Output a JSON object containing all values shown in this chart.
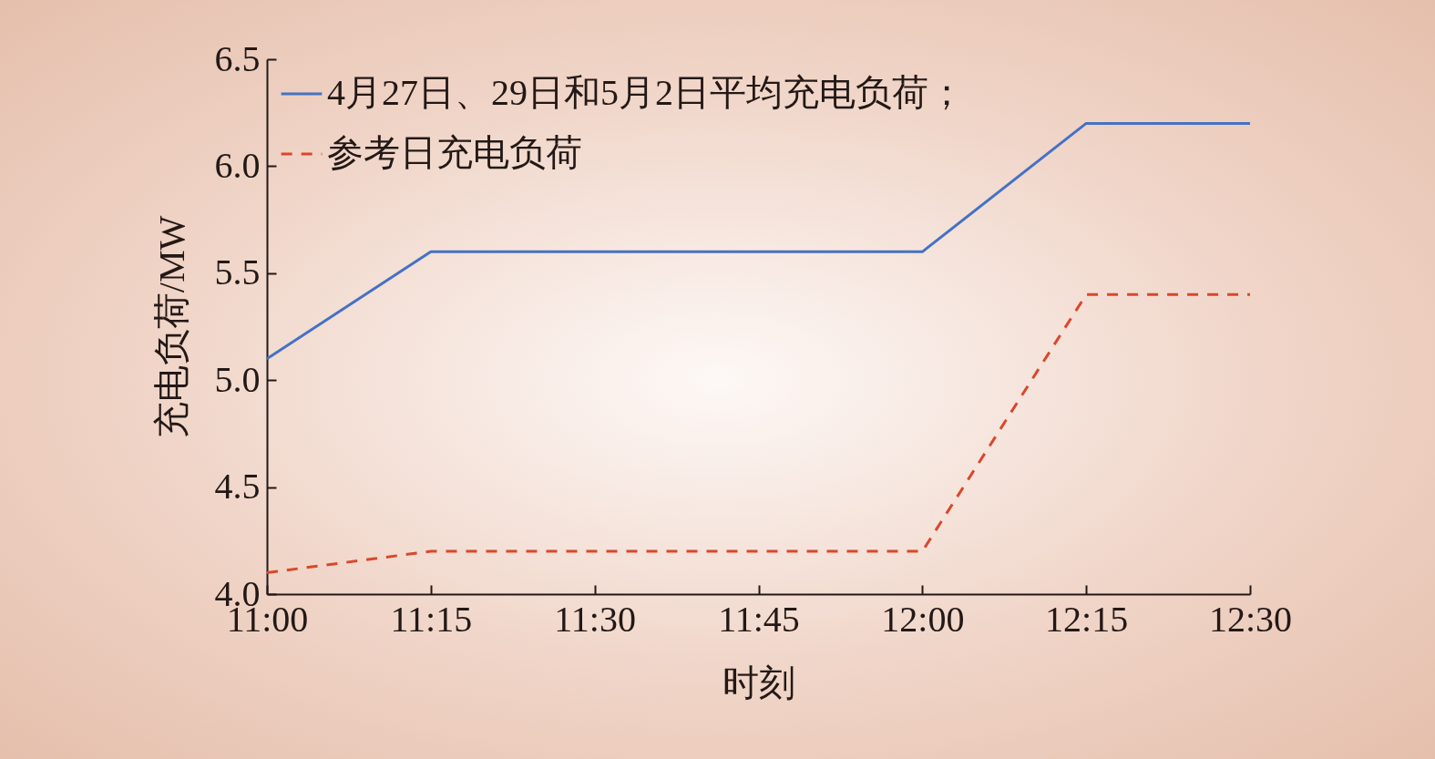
{
  "chart_data": {
    "type": "line",
    "xlabel": "时刻",
    "ylabel": "充电负荷/MW",
    "x": [
      11,
      11.25,
      11.5,
      11.75,
      12,
      12.25,
      12.5
    ],
    "series": [
      {
        "name": "4月27日、29日和5月2日平均充电负荷；",
        "color": "#4472c4",
        "line_style": "solid",
        "values": [
          5.1,
          5.6,
          5.6,
          5.6,
          5.6,
          6.2,
          6.2
        ]
      },
      {
        "name": "参考日充电负荷",
        "color": "#d9472b",
        "line_style": "dashed",
        "values": [
          4.1,
          4.2,
          4.2,
          4.2,
          4.2,
          5.4,
          5.4
        ]
      }
    ],
    "xlim": [
      11,
      12.5
    ],
    "xticks": [
      {
        "value": 11,
        "label": "11:00"
      },
      {
        "value": 11.25,
        "label": "11:15"
      },
      {
        "value": 11.5,
        "label": "11:30"
      },
      {
        "value": 11.75,
        "label": "11:45"
      },
      {
        "value": 12,
        "label": "12:00"
      },
      {
        "value": 12.25,
        "label": "12:15"
      },
      {
        "value": 12.5,
        "label": "12:30"
      }
    ],
    "ylim": [
      4,
      6.5
    ],
    "yticks": [
      {
        "value": 4,
        "label": "4.0"
      },
      4.5,
      {
        "value": 5,
        "label": "5.0"
      },
      5.5,
      {
        "value": 6,
        "label": "6.0"
      },
      6.5
    ],
    "grid": false,
    "legend": "top left",
    "marker": "none"
  }
}
